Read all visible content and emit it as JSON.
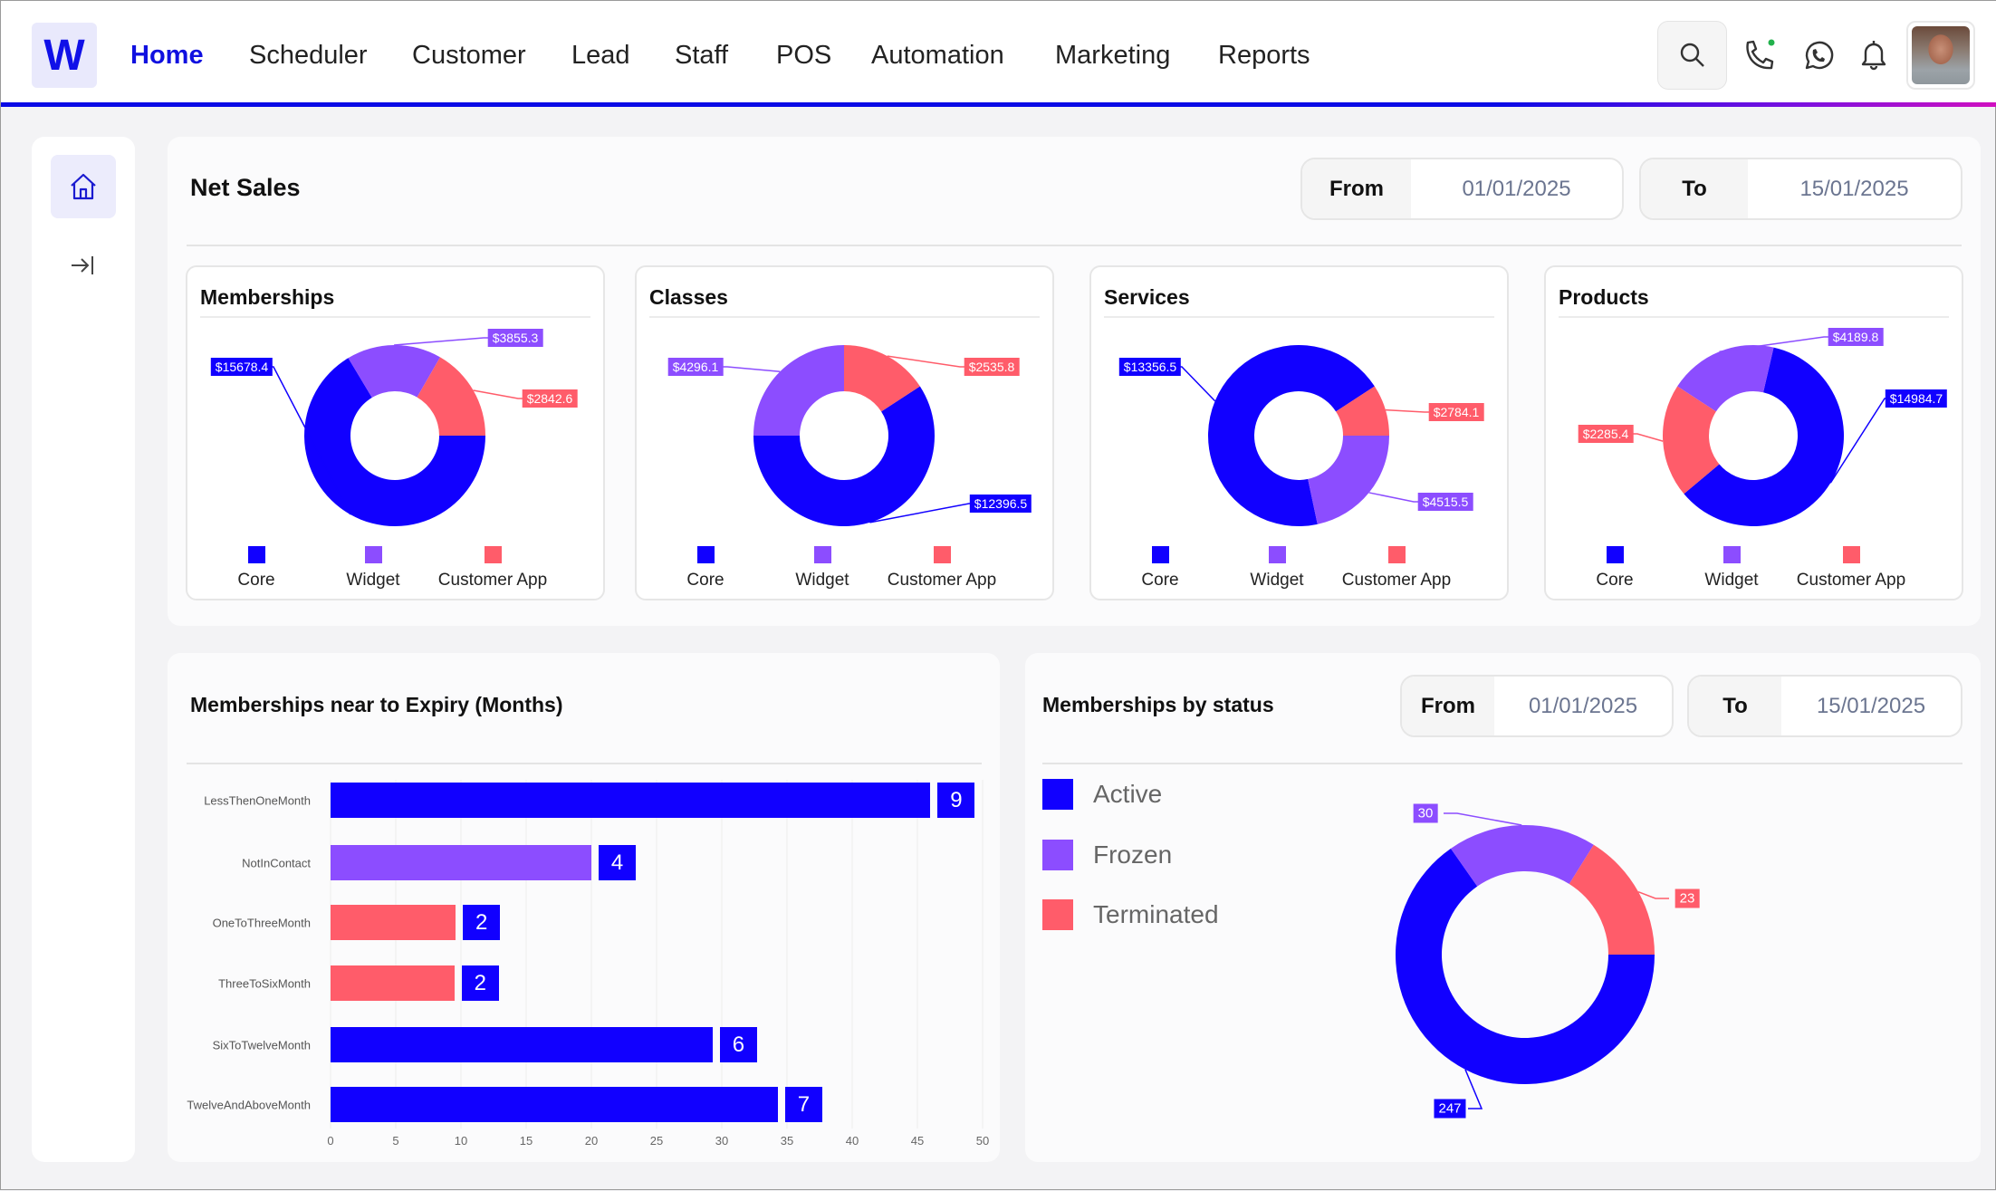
{
  "nav": {
    "logo": "W",
    "items": [
      "Home",
      "Scheduler",
      "Customer",
      "Lead",
      "Staff",
      "POS",
      "Automation",
      "Marketing",
      "Reports"
    ],
    "active": "Home",
    "icons": [
      "search-icon",
      "phone-icon",
      "whatsapp-icon",
      "bell-icon",
      "avatar"
    ]
  },
  "sidebar": {
    "items": [
      "home-icon",
      "collapse-sidebar-icon"
    ]
  },
  "colors": {
    "core": "#1100ff",
    "widget": "#8c4dff",
    "customer_app": "#ff5c6a",
    "nav_active": "#1010e0"
  },
  "net_sales": {
    "title": "Net Sales",
    "from_label": "From",
    "from_value": "01/01/2025",
    "to_label": "To",
    "to_value": "15/01/2025"
  },
  "legend": [
    "Core",
    "Widget",
    "Customer App"
  ],
  "expiry": {
    "title": "Memberships near to Expiry (Months)"
  },
  "status": {
    "title": "Memberships by status",
    "from_label": "From",
    "from_value": "01/01/2025",
    "to_label": "To",
    "to_value": "15/01/2025",
    "legend": [
      "Active",
      "Frozen",
      "Terminated"
    ]
  },
  "chart_data": [
    {
      "type": "pie",
      "title": "Memberships",
      "categories": [
        "Core",
        "Widget",
        "Customer App"
      ],
      "values": [
        15678.4,
        3855.3,
        2842.6
      ],
      "labels": [
        "$15678.4",
        "$3855.3",
        "$2842.6"
      ]
    },
    {
      "type": "pie",
      "title": "Classes",
      "categories": [
        "Core",
        "Widget",
        "Customer App"
      ],
      "values": [
        12396.5,
        4296.1,
        2535.8
      ],
      "labels": [
        "$12396.5",
        "$4296.1",
        "$2535.8"
      ]
    },
    {
      "type": "pie",
      "title": "Services",
      "categories": [
        "Core",
        "Widget",
        "Customer App"
      ],
      "values": [
        13356.5,
        4515.5,
        2784.1
      ],
      "labels": [
        "$13356.5",
        "$4515.5",
        "$2784.1"
      ]
    },
    {
      "type": "pie",
      "title": "Products",
      "categories": [
        "Core",
        "Widget",
        "Customer App"
      ],
      "values": [
        14984.7,
        4189.8,
        2285.4
      ],
      "labels": [
        "$14984.7",
        "$4189.8",
        "$2285.4"
      ]
    },
    {
      "type": "bar",
      "orientation": "horizontal",
      "categories": [
        "LessThenOneMonth",
        "NotInContact",
        "OneToThreeMonth",
        "ThreeToSixMonth",
        "SixToTwelveMonth",
        "TwelveAndAboveMonth"
      ],
      "values": [
        46,
        20,
        9.6,
        9.5,
        29.3,
        34.3
      ],
      "data_labels": [
        "9",
        "4",
        "2",
        "2",
        "6",
        "7"
      ],
      "bar_colors": [
        "#1100ff",
        "#8c4dff",
        "#ff5c6a",
        "#ff5c6a",
        "#1100ff",
        "#1100ff"
      ],
      "xlim": [
        0,
        50
      ],
      "xticks": [
        "0",
        "5",
        "10",
        "15",
        "20",
        "25",
        "30",
        "35",
        "40",
        "45",
        "50"
      ],
      "grid": true
    },
    {
      "type": "pie",
      "title": "Memberships by status",
      "categories": [
        "Active",
        "Frozen",
        "Terminated"
      ],
      "values": [
        247,
        30,
        23
      ],
      "labels": [
        "247",
        "30",
        "23"
      ],
      "legend": "left"
    }
  ]
}
